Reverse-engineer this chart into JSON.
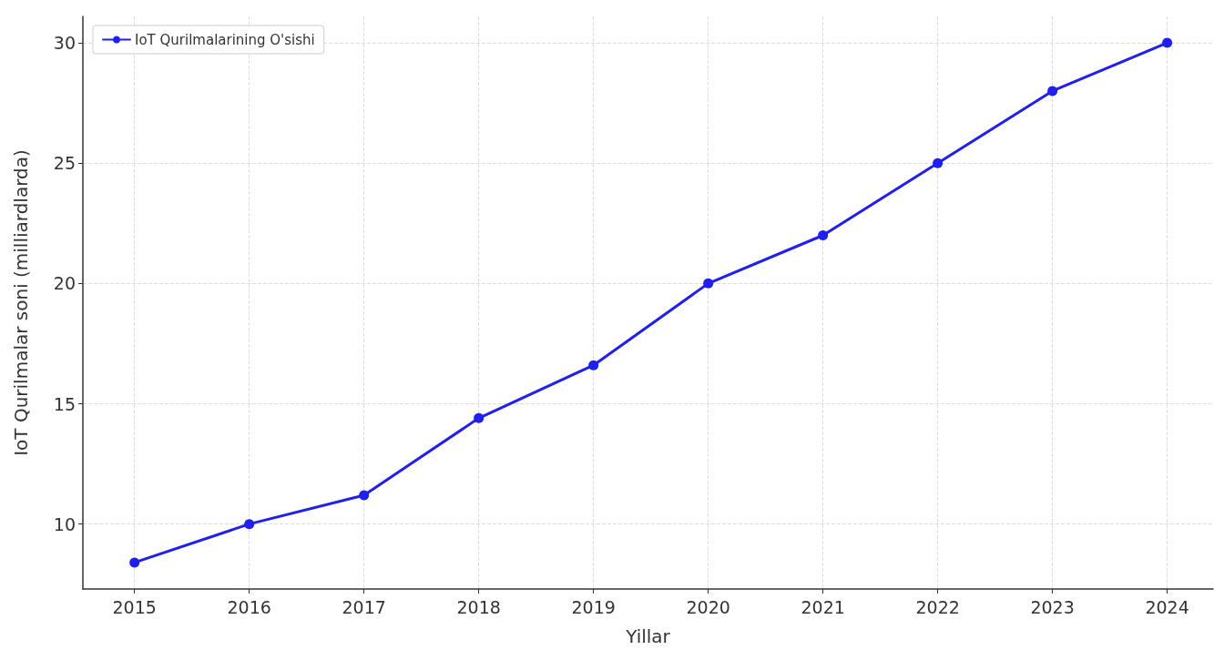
{
  "chart_data": {
    "type": "line",
    "xlabel": "Yillar",
    "ylabel": "IoT Qurilmalar soni (milliardlarda)",
    "x": [
      2015,
      2016,
      2017,
      2018,
      2019,
      2020,
      2021,
      2022,
      2023,
      2024
    ],
    "series": [
      {
        "name": "IoT Qurilmalarining O'sishi",
        "color": "#1f1fef",
        "values": [
          8.4,
          10,
          11.2,
          14.4,
          16.6,
          20,
          22,
          25,
          28,
          30
        ]
      }
    ],
    "xlim": [
      2014.55,
      2024.4
    ],
    "xticks": [
      2015,
      2016,
      2017,
      2018,
      2019,
      2020,
      2021,
      2022,
      2023,
      2024
    ],
    "ylim": [
      7.3,
      31.1
    ],
    "yticks": [
      10,
      15,
      20,
      25,
      30
    ],
    "grid": true,
    "legend": "top left",
    "marker": "circle",
    "line_style": "solid"
  }
}
